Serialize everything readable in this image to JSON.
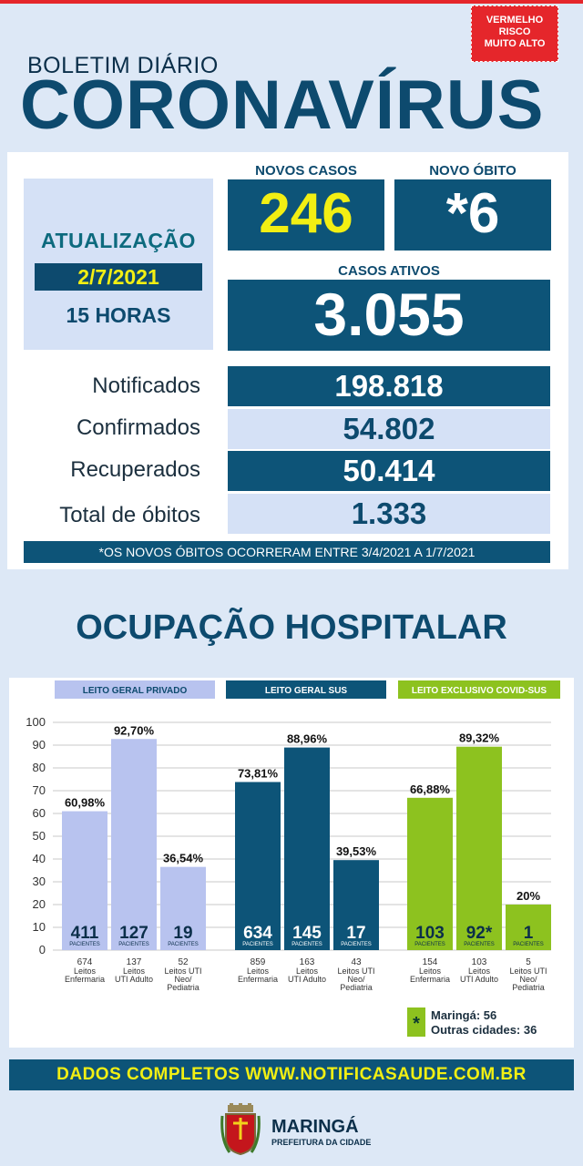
{
  "risk_badge": {
    "line1": "VERMELHO",
    "line2": "RISCO",
    "line3": "MUITO ALTO"
  },
  "header": {
    "subtitle": "BOLETIM DIÁRIO",
    "title": "CORONAVÍRUS"
  },
  "update": {
    "label": "ATUALIZAÇÃO",
    "date": "2/7/2021",
    "hour": "15 HORAS"
  },
  "novos_casos": {
    "label": "NOVOS CASOS",
    "value": "246"
  },
  "novo_obito": {
    "label": "NOVO ÓBITO",
    "value": "*6"
  },
  "casos_ativos": {
    "label": "CASOS ATIVOS",
    "value": "3.055"
  },
  "stats": [
    {
      "label": "Notificados",
      "value": "198.818"
    },
    {
      "label": "Confirmados",
      "value": "54.802"
    },
    {
      "label": "Recuperados",
      "value": "50.414"
    },
    {
      "label": "Total de óbitos",
      "value": "1.333"
    }
  ],
  "note": "*OS NOVOS ÓBITOS OCORRERAM ENTRE 3/4/2021 A 1/7/2021",
  "section_title": "OCUPAÇÃO HOSPITALAR",
  "chart_data": {
    "type": "bar",
    "ylim": [
      0,
      100
    ],
    "yticks": [
      0,
      10,
      20,
      30,
      40,
      50,
      60,
      70,
      80,
      90,
      100
    ],
    "grid": true,
    "patients_label": "PACIENTES",
    "colors": {
      "privado": "#b8c3ef",
      "sus": "#0d5478",
      "covid": "#8dc21f"
    },
    "groups": [
      {
        "name": "LEITO GERAL PRIVADO",
        "color_key": "privado",
        "bars": [
          {
            "percent": 60.98,
            "percent_label": "60,98%",
            "patients": "411",
            "beds": "674",
            "category": [
              "Leitos",
              "Enfermaria"
            ]
          },
          {
            "percent": 92.7,
            "percent_label": "92,70%",
            "patients": "127",
            "beds": "137",
            "category": [
              "Leitos",
              "UTI Adulto"
            ]
          },
          {
            "percent": 36.54,
            "percent_label": "36,54%",
            "patients": "19",
            "beds": "52",
            "category": [
              "Leitos UTI",
              "Neo/",
              "Pediatria"
            ]
          }
        ]
      },
      {
        "name": "LEITO GERAL SUS",
        "color_key": "sus",
        "bars": [
          {
            "percent": 73.81,
            "percent_label": "73,81%",
            "patients": "634",
            "beds": "859",
            "category": [
              "Leitos",
              "Enfermaria"
            ]
          },
          {
            "percent": 88.96,
            "percent_label": "88,96%",
            "patients": "145",
            "beds": "163",
            "category": [
              "Leitos",
              "UTI Adulto"
            ]
          },
          {
            "percent": 39.53,
            "percent_label": "39,53%",
            "patients": "17",
            "beds": "43",
            "category": [
              "Leitos UTI",
              "Neo/",
              "Pediatria"
            ]
          }
        ]
      },
      {
        "name": "LEITO EXCLUSIVO COVID-SUS",
        "color_key": "covid",
        "bars": [
          {
            "percent": 66.88,
            "percent_label": "66,88%",
            "patients": "103",
            "beds": "154",
            "category": [
              "Leitos",
              "Enfermaria"
            ]
          },
          {
            "percent": 89.32,
            "percent_label": "89,32%",
            "patients": "92*",
            "beds": "103",
            "category": [
              "Leitos",
              "UTI Adulto"
            ]
          },
          {
            "percent": 20,
            "percent_label": "20%",
            "patients": "1",
            "beds": "5",
            "category": [
              "Leitos UTI",
              "Neo/",
              "Pediatria"
            ]
          }
        ]
      }
    ]
  },
  "legend": {
    "symbol": "*",
    "maringa": "Maringá: 56",
    "outras": "Outras cidades: 36"
  },
  "footer": "DADOS COMPLETOS  WWW.NOTIFICASAUDE.COM.BR",
  "logo": {
    "name": "MARINGÁ",
    "sub": "PREFEITURA DA CIDADE"
  }
}
